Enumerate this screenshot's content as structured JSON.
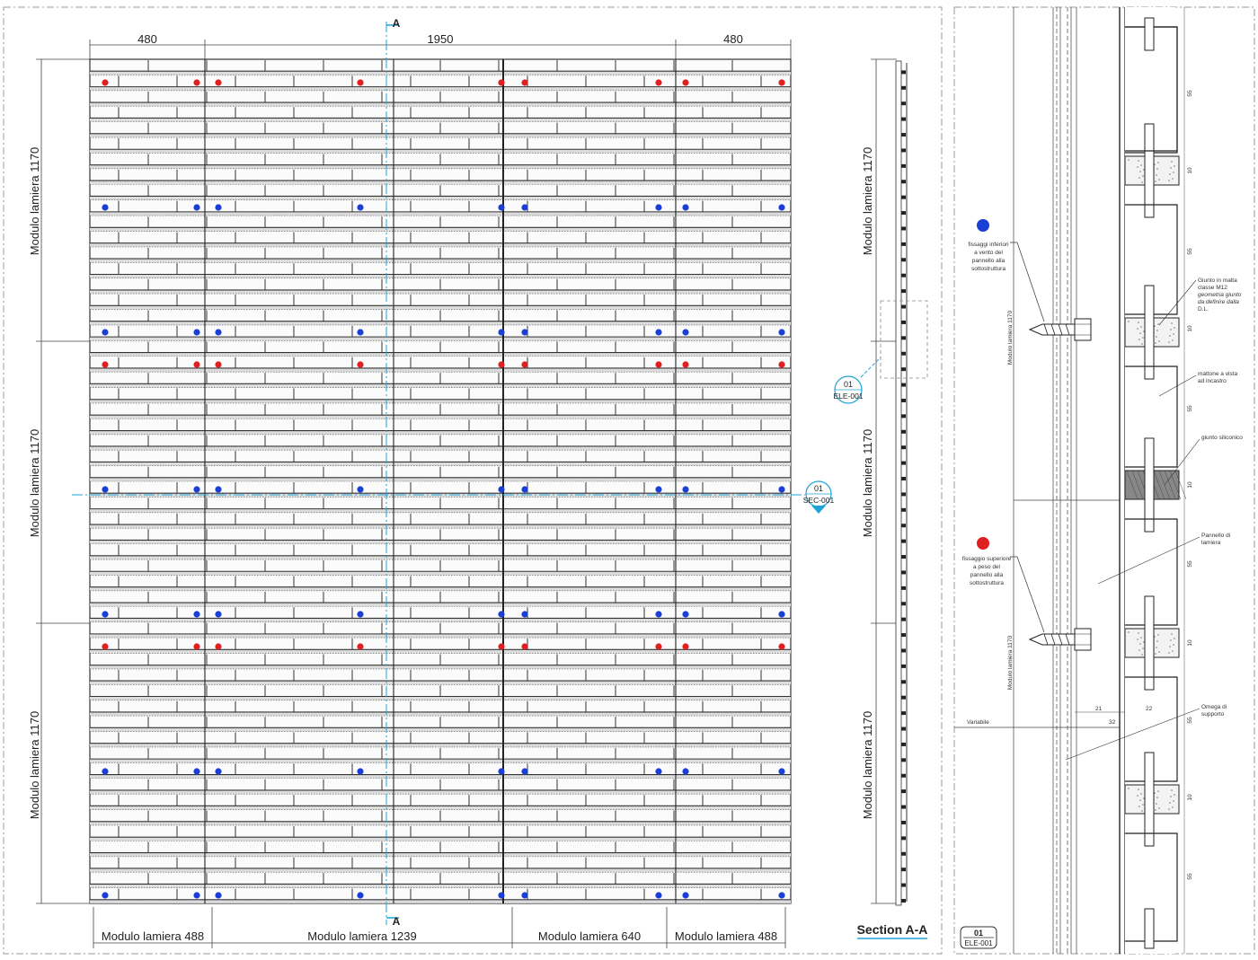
{
  "elevation": {
    "top_dims": [
      "480",
      "1950",
      "480"
    ],
    "left_dims": [
      "Modulo lamiera 1170",
      "Modulo lamiera 1170",
      "Modulo lamiera 1170"
    ],
    "bottom_dims": [
      "Modulo lamiera 488",
      "Modulo lamiera 1239",
      "Modulo lamiera 640",
      "Modulo lamiera 488"
    ],
    "section_mark": "A",
    "callout_sec": {
      "num": "01",
      "ref": "SEC-001"
    }
  },
  "section_view": {
    "title": "Section A-A",
    "dims": [
      "Modulo lamiera 1170",
      "Modulo lamiera 1170",
      "Modulo lamiera 1170"
    ],
    "callout_detail": {
      "num": "01",
      "ref": "ELE-001"
    }
  },
  "detail": {
    "legend_blue": [
      "fissaggi inferiori",
      "a vento del",
      "pannello alla",
      "sottostruttura"
    ],
    "legend_red": [
      "fissaggio superiore",
      "a peso del",
      "pannello alla",
      "sottostruttura"
    ],
    "notes": {
      "giunto_malta": [
        "Giunto in malta",
        "classe M12",
        "geometria giunto",
        "da definire dalla",
        "D.L."
      ],
      "mattone": [
        "mattone a vista",
        "ad incastro"
      ],
      "giunto_siliconico": [
        "giunto siliconico"
      ],
      "pannello": [
        "Pannello di",
        "lamiera"
      ],
      "omega": [
        "Omega di",
        "supporto"
      ]
    },
    "module_labels": [
      "Modulo lamiera 1170",
      "Modulo lamiera 1170"
    ],
    "variabile": "Variabile",
    "dims_small": {
      "d21": "21",
      "d22": "22",
      "d32": "32"
    },
    "dim_ticks": [
      "55",
      "10",
      "55",
      "10",
      "55",
      "10",
      "55",
      "10",
      "55",
      "10",
      "55"
    ],
    "tag": {
      "num": "01",
      "ref": "ELE-001"
    }
  },
  "colors": {
    "red_fixing": "#e02020",
    "blue_fixing": "#1a3fd6",
    "cyan": "#1fa2d6"
  }
}
